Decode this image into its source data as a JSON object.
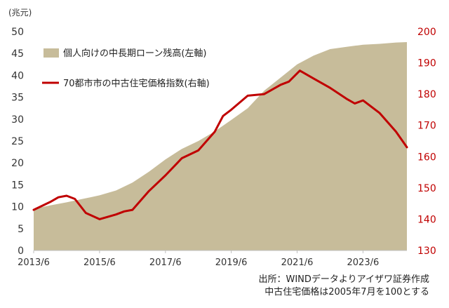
{
  "chart_data": {
    "type": "area+line",
    "unit_left": "(兆元)",
    "legend": {
      "area_label": "個人向けの中長期ローン残高(左軸)",
      "line_label": "70都市市の中古住宅価格指数(右軸)"
    },
    "x_tick_labels": [
      "2013/6",
      "2015/6",
      "2017/6",
      "2019/6",
      "2021/6",
      "2023/6"
    ],
    "left_axis": {
      "ylim": [
        0,
        50
      ],
      "ticks": [
        0,
        5,
        10,
        15,
        20,
        25,
        30,
        35,
        40,
        45,
        50
      ]
    },
    "right_axis": {
      "ylim": [
        130,
        200
      ],
      "ticks": [
        130,
        140,
        150,
        160,
        170,
        180,
        190,
        200
      ]
    },
    "x_range": [
      "2013-06",
      "2024-10"
    ],
    "series": [
      {
        "name": "個人向けの中長期ローン残高(左軸)",
        "axis": "left",
        "type": "area",
        "x": [
          "2013-06",
          "2013-12",
          "2014-06",
          "2014-12",
          "2015-06",
          "2015-12",
          "2016-06",
          "2016-12",
          "2017-06",
          "2017-12",
          "2018-06",
          "2018-12",
          "2019-06",
          "2019-12",
          "2020-06",
          "2020-12",
          "2021-06",
          "2021-12",
          "2022-06",
          "2022-12",
          "2023-06",
          "2023-12",
          "2024-06",
          "2024-10"
        ],
        "values": [
          9.5,
          10.3,
          11.0,
          11.8,
          12.6,
          13.7,
          15.5,
          18.0,
          20.8,
          23.2,
          25.0,
          27.2,
          29.8,
          32.5,
          36.5,
          39.5,
          42.5,
          44.5,
          46.0,
          46.5,
          47.0,
          47.2,
          47.5,
          47.6
        ]
      },
      {
        "name": "70都市市の中古住宅価格指数(右軸)",
        "axis": "right",
        "type": "line",
        "color": "#c00000",
        "x": [
          "2013-06",
          "2013-12",
          "2014-03",
          "2014-06",
          "2014-09",
          "2015-01",
          "2015-06",
          "2015-12",
          "2016-03",
          "2016-06",
          "2016-12",
          "2017-06",
          "2017-12",
          "2018-06",
          "2018-12",
          "2019-03",
          "2019-06",
          "2019-12",
          "2020-06",
          "2020-12",
          "2021-03",
          "2021-07",
          "2021-12",
          "2022-06",
          "2022-12",
          "2023-03",
          "2023-06",
          "2023-12",
          "2024-06",
          "2024-10"
        ],
        "values": [
          143.0,
          145.5,
          147.0,
          147.5,
          146.5,
          142.0,
          140.0,
          141.5,
          142.5,
          143.0,
          149.0,
          154.0,
          159.5,
          162.0,
          168.0,
          173.0,
          175.0,
          179.5,
          180.0,
          183.0,
          184.0,
          187.5,
          185.0,
          182.0,
          178.5,
          177.0,
          178.0,
          174.0,
          168.0,
          163.0
        ]
      }
    ],
    "grid": false
  },
  "source_note": {
    "line1": "出所：WINDデータよりアイザワ証券作成",
    "line2": "中古住宅価格は2005年7月を100とする"
  },
  "colors": {
    "area_fill": "#c7bc9a",
    "line": "#c00000",
    "left_axis_text": "#333333",
    "right_axis_text": "#c00000"
  }
}
